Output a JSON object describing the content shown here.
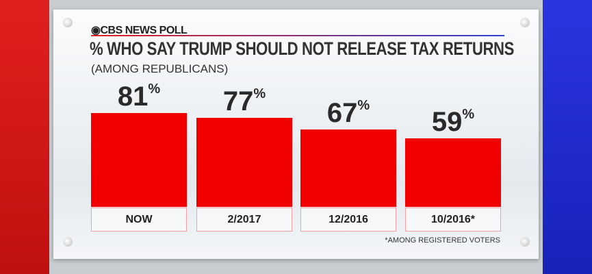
{
  "header": {
    "brand": "CBS NEWS POLL"
  },
  "chart_data": {
    "type": "bar",
    "title": "% WHO SAY TRUMP SHOULD NOT RELEASE TAX RETURNS",
    "subtitle": "(AMONG REPUBLICANS)",
    "categories": [
      "NOW",
      "2/2017",
      "12/2016",
      "10/2016*"
    ],
    "values": [
      81,
      77,
      67,
      59
    ],
    "value_suffix": "%",
    "ylim": [
      0,
      100
    ],
    "bar_color": "#f20000",
    "footnote": "*AMONG REGISTERED VOTERS"
  },
  "colors": {
    "left_panel": "#e0201e",
    "right_panel": "#2a35e0"
  }
}
